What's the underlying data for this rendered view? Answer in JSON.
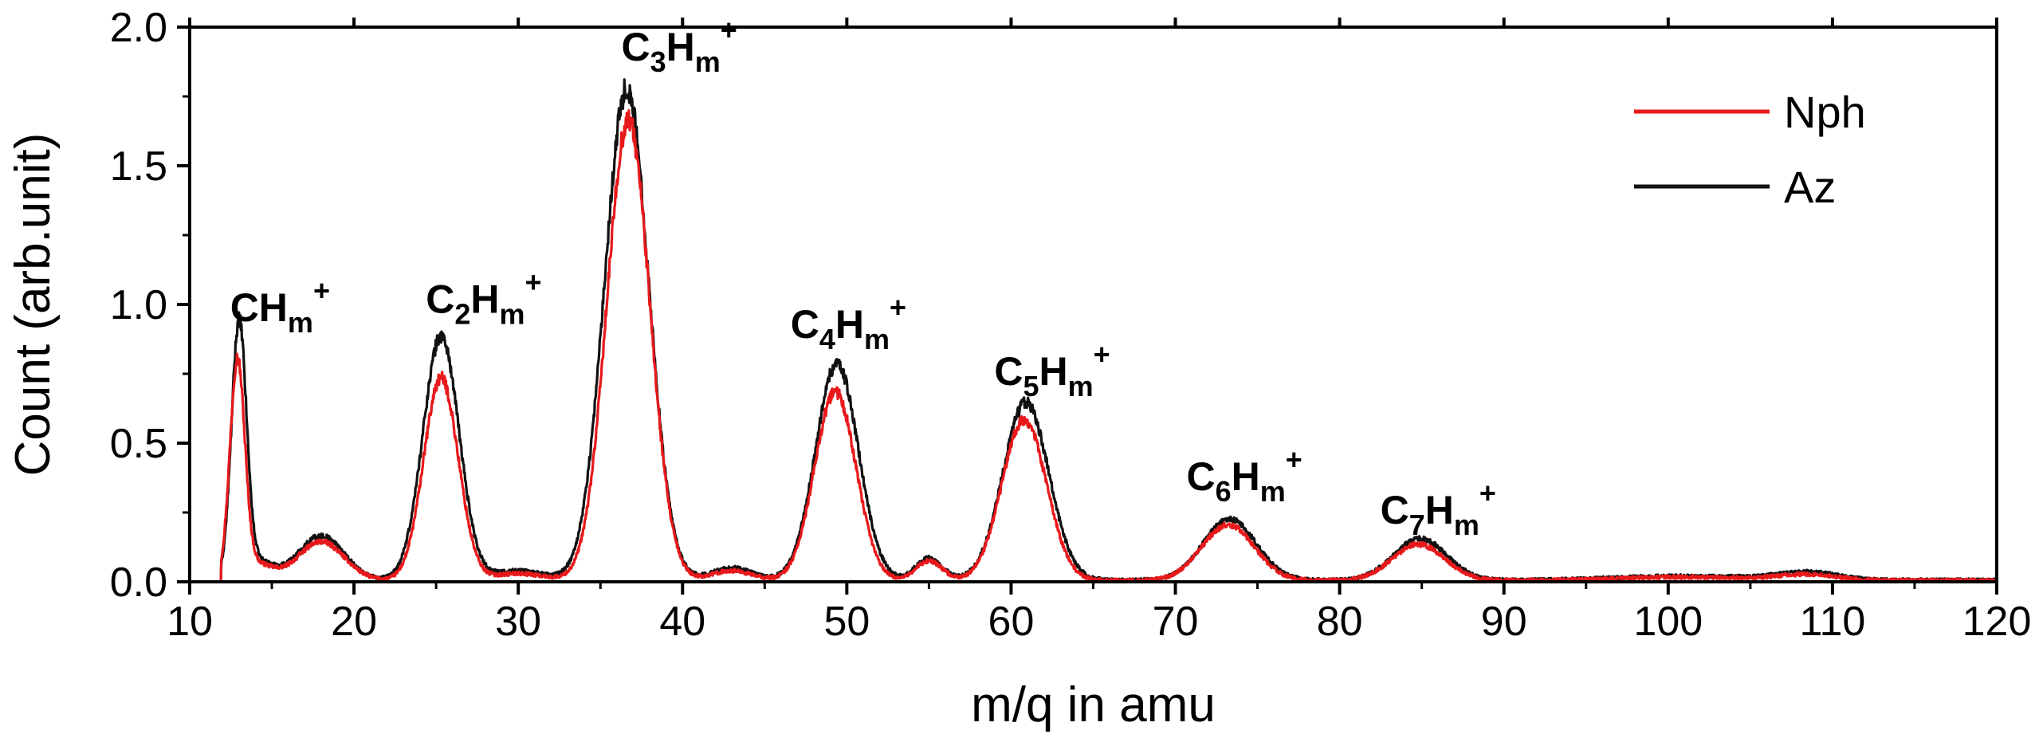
{
  "chart_data": {
    "type": "line",
    "xlabel": "m/q in amu",
    "ylabel": "Count (arb.unit)",
    "xlim": [
      10,
      120
    ],
    "ylim": [
      0,
      2.0
    ],
    "x_ticks": [
      10,
      20,
      30,
      40,
      50,
      60,
      70,
      80,
      90,
      100,
      110,
      120
    ],
    "y_ticks": [
      "0.0",
      "0.5",
      "1.0",
      "1.5",
      "2.0"
    ],
    "grid": false,
    "legend_position": "top-right",
    "series": [
      {
        "name": "Nph",
        "color": "#e8191b",
        "baseline": 0.005,
        "onset": 11.9,
        "peaks": [
          {
            "center": 12.9,
            "height": 0.77,
            "width": 0.45
          },
          {
            "center": 14.0,
            "height": 0.06,
            "width": 1.0
          },
          {
            "center": 18.0,
            "height": 0.14,
            "width": 1.4
          },
          {
            "center": 25.3,
            "height": 0.73,
            "width": 1.05
          },
          {
            "center": 30.0,
            "height": 0.025,
            "width": 1.5
          },
          {
            "center": 36.7,
            "height": 1.66,
            "width": 1.3
          },
          {
            "center": 43.0,
            "height": 0.035,
            "width": 1.2
          },
          {
            "center": 49.3,
            "height": 0.68,
            "width": 1.25
          },
          {
            "center": 55.0,
            "height": 0.07,
            "width": 0.8
          },
          {
            "center": 60.8,
            "height": 0.58,
            "width": 1.35
          },
          {
            "center": 73.2,
            "height": 0.2,
            "width": 1.6
          },
          {
            "center": 84.8,
            "height": 0.13,
            "width": 1.6
          },
          {
            "center": 101.0,
            "height": 0.012,
            "width": 4.0
          },
          {
            "center": 108.5,
            "height": 0.02,
            "width": 1.8
          }
        ]
      },
      {
        "name": "Az",
        "color": "#111111",
        "baseline": 0.006,
        "onset": 11.9,
        "peaks": [
          {
            "center": 13.0,
            "height": 0.9,
            "width": 0.45
          },
          {
            "center": 14.0,
            "height": 0.07,
            "width": 1.0
          },
          {
            "center": 18.0,
            "height": 0.16,
            "width": 1.4
          },
          {
            "center": 25.3,
            "height": 0.88,
            "width": 1.1
          },
          {
            "center": 30.0,
            "height": 0.035,
            "width": 1.5
          },
          {
            "center": 36.6,
            "height": 1.77,
            "width": 1.35
          },
          {
            "center": 43.0,
            "height": 0.045,
            "width": 1.2
          },
          {
            "center": 49.4,
            "height": 0.78,
            "width": 1.3
          },
          {
            "center": 55.0,
            "height": 0.08,
            "width": 0.8
          },
          {
            "center": 60.9,
            "height": 0.64,
            "width": 1.4
          },
          {
            "center": 73.3,
            "height": 0.22,
            "width": 1.6
          },
          {
            "center": 84.9,
            "height": 0.15,
            "width": 1.6
          },
          {
            "center": 101.0,
            "height": 0.015,
            "width": 4.0
          },
          {
            "center": 108.5,
            "height": 0.028,
            "width": 1.8
          }
        ]
      }
    ],
    "annotations": [
      {
        "id": "ch",
        "base": "CH",
        "sub": "m",
        "sup": "+",
        "x": 15.5,
        "y": 0.94
      },
      {
        "id": "c2h",
        "base": "C",
        "sub1": "2",
        "base2": "H",
        "sub": "m",
        "sup": "+",
        "x": 27.9,
        "y": 0.97
      },
      {
        "id": "c3h",
        "base": "C",
        "sub1": "3",
        "base2": "H",
        "sub": "m",
        "sup": "+",
        "x": 39.8,
        "y": 1.88
      },
      {
        "id": "c4h",
        "base": "C",
        "sub1": "4",
        "base2": "H",
        "sub": "m",
        "sup": "+",
        "x": 50.1,
        "y": 0.88
      },
      {
        "id": "c5h",
        "base": "C",
        "sub1": "5",
        "base2": "H",
        "sub": "m",
        "sup": "+",
        "x": 62.5,
        "y": 0.71
      },
      {
        "id": "c6h",
        "base": "C",
        "sub1": "6",
        "base2": "H",
        "sub": "m",
        "sup": "+",
        "x": 74.2,
        "y": 0.33
      },
      {
        "id": "c7h",
        "base": "C",
        "sub1": "7",
        "base2": "H",
        "sub": "m",
        "sup": "+",
        "x": 86.0,
        "y": 0.21
      }
    ]
  }
}
